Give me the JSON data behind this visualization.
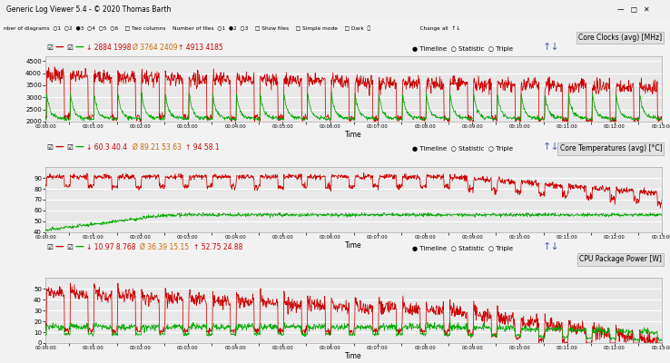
{
  "title": "Generic Log Viewer 5.4 - © 2020 Thomas Barth",
  "bg_color": "#f0f0f0",
  "plot_bg": "#e8e8e8",
  "panel_bg": "#ebebeb",
  "grid_color": "#ffffff",
  "red_color": "#cc0000",
  "green_color": "#00aa00",
  "time_label": "Time",
  "duration_minutes": 13,
  "n_points": 1560,
  "panel1": {
    "ylim": [
      2000,
      4700
    ],
    "yticks": [
      2000,
      2500,
      3000,
      3500,
      4000,
      4500
    ],
    "right_label": "Core Clocks (avg) [MHz]",
    "stats_red": "↓ 2884 1998",
    "stats_orange": "Ø 3764 2409",
    "stats_blue": "↑ 4913 4185"
  },
  "panel2": {
    "ylim": [
      40,
      100
    ],
    "yticks": [
      40,
      50,
      60,
      70,
      80,
      90
    ],
    "right_label": "Core Temperatures (avg) [°C]",
    "stats_red": "↓ 60.3 40.4",
    "stats_orange": "Ø 89.21 53.63",
    "stats_blue": "↑ 94 58.1"
  },
  "panel3": {
    "ylim": [
      0,
      60
    ],
    "yticks": [
      0,
      10,
      20,
      30,
      40,
      50
    ],
    "right_label": "CPU Package Power [W]",
    "stats_red": "↓ 10.97 8.768",
    "stats_orange": "Ø 36.39 15.15",
    "stats_blue": "↑ 52.75 24.88"
  }
}
